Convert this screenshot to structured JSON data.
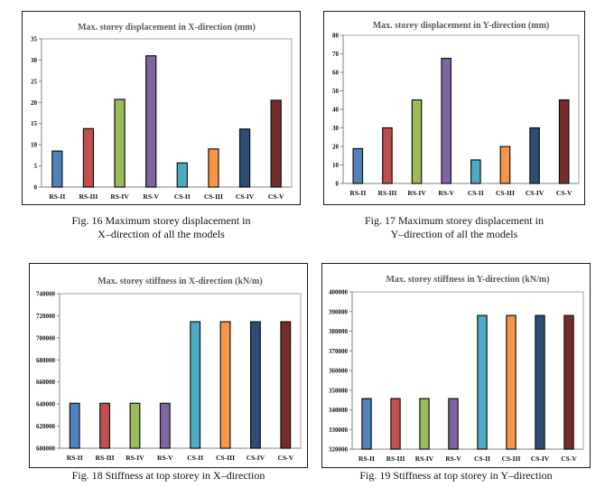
{
  "colors": {
    "RS-II": "#4F81BD",
    "RS-III": "#C0504D",
    "RS-IV": "#9BBB59",
    "RS-V": "#8064A2",
    "CS-II": "#4BACC6",
    "CS-III": "#F79646",
    "CS-IV": "#2C4D75",
    "CS-V": "#772C2A"
  },
  "captions": {
    "fig16": [
      "Fig. 16  Maximum storey displacement in",
      "X–direction of all the models"
    ],
    "fig17": [
      "Fig. 17  Maximum storey displacement in",
      "Y–direction of all the models"
    ],
    "fig18": [
      "Fig. 18  Stiffness at top storey in X–direction"
    ],
    "fig19": [
      "Fig. 19  Stiffness at top storey in Y–direction"
    ]
  },
  "chart_data": [
    {
      "id": "fig16",
      "type": "bar",
      "title": "Max. storey displacement in X-direction (mm)",
      "xlabel": "",
      "ylabel": "",
      "categories": [
        "RS-II",
        "RS-III",
        "RS-IV",
        "RS-V",
        "CS-II",
        "CS-III",
        "CS-IV",
        "CS-V"
      ],
      "values": [
        8.5,
        13.8,
        20.7,
        31.0,
        5.7,
        9.0,
        13.7,
        20.5
      ],
      "ylim": [
        0,
        35
      ],
      "yticks": [
        0,
        5,
        10,
        15,
        20,
        25,
        30,
        35
      ],
      "grid": false,
      "legend": "none"
    },
    {
      "id": "fig17",
      "type": "bar",
      "title": "Max. storey displacement in Y-direction (mm)",
      "xlabel": "",
      "ylabel": "",
      "categories": [
        "RS-II",
        "RS-III",
        "RS-IV",
        "RS-V",
        "CS-II",
        "CS-III",
        "CS-IV",
        "CS-V"
      ],
      "values": [
        18.8,
        30.0,
        45.1,
        67.5,
        12.7,
        19.9,
        30.0,
        45.1
      ],
      "ylim": [
        0,
        80
      ],
      "yticks": [
        0,
        10,
        20,
        30,
        40,
        50,
        60,
        70,
        80
      ],
      "grid": false,
      "legend": "none"
    },
    {
      "id": "fig18",
      "type": "bar",
      "title": "Max. storey stiffness in X-direction (kN/m)",
      "xlabel": "",
      "ylabel": "",
      "categories": [
        "RS-II",
        "RS-III",
        "RS-IV",
        "RS-V",
        "CS-II",
        "CS-III",
        "CS-IV",
        "CS-V"
      ],
      "values": [
        640700,
        640700,
        640700,
        640700,
        714600,
        714600,
        714600,
        714600
      ],
      "ylim": [
        600000,
        740000
      ],
      "yticks": [
        600000,
        620000,
        640000,
        660000,
        680000,
        700000,
        720000,
        740000
      ],
      "grid": false,
      "legend": "none"
    },
    {
      "id": "fig19",
      "type": "bar",
      "title": "Max. storey stiffness in Y-direction (kN/m)",
      "xlabel": "",
      "ylabel": "",
      "categories": [
        "RS-II",
        "RS-III",
        "RS-IV",
        "RS-V",
        "CS-II",
        "CS-III",
        "CS-IV",
        "CS-V"
      ],
      "values": [
        345700,
        345700,
        345700,
        345700,
        388000,
        388000,
        388000,
        388000
      ],
      "ylim": [
        320000,
        400000
      ],
      "yticks": [
        320000,
        330000,
        340000,
        350000,
        360000,
        370000,
        380000,
        390000,
        400000
      ],
      "grid": false,
      "legend": "none"
    }
  ]
}
